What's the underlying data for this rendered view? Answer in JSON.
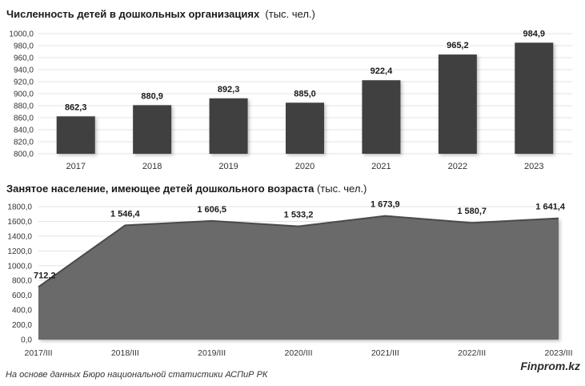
{
  "chart_data": [
    {
      "type": "bar",
      "title": "Численность детей в дошкольных организациях",
      "unit": "(тыс. чел.)",
      "categories": [
        "2017",
        "2018",
        "2019",
        "2020",
        "2021",
        "2022",
        "2023"
      ],
      "values": [
        862.3,
        880.9,
        892.3,
        885.0,
        922.4,
        965.2,
        984.9
      ],
      "value_labels": [
        "862,3",
        "880,9",
        "892,3",
        "885,0",
        "922,4",
        "965,2",
        "984,9"
      ],
      "ylim": [
        800,
        1000
      ],
      "yticks": [
        "800,0",
        "820,0",
        "840,0",
        "860,0",
        "880,0",
        "900,0",
        "920,0",
        "940,0",
        "960,0",
        "980,0",
        "1000,0"
      ],
      "grid": true,
      "color": "#404040"
    },
    {
      "type": "area",
      "title": "Занятое население, имеющее детей дошкольного возраста",
      "unit": "(тыс. чел.)",
      "categories": [
        "2017/III",
        "2018/III",
        "2019/III",
        "2020/III",
        "2021/III",
        "2022/III",
        "2023/III"
      ],
      "values": [
        712.2,
        1546.4,
        1606.5,
        1533.2,
        1673.9,
        1580.7,
        1641.4
      ],
      "value_labels": [
        "712,2",
        "1 546,4",
        "1 606,5",
        "1 533,2",
        "1 673,9",
        "1 580,7",
        "1 641,4"
      ],
      "ylim": [
        0,
        1800
      ],
      "yticks": [
        "0,0",
        "200,0",
        "400,0",
        "600,0",
        "800,0",
        "1000,0",
        "1200,0",
        "1400,0",
        "1600,0",
        "1800,0"
      ],
      "grid": true,
      "color": "#6b6b6b"
    }
  ],
  "footer": {
    "source": "На основе данных Бюро национальной статистики АСПиР РК",
    "brand": "Finprom.kz"
  }
}
